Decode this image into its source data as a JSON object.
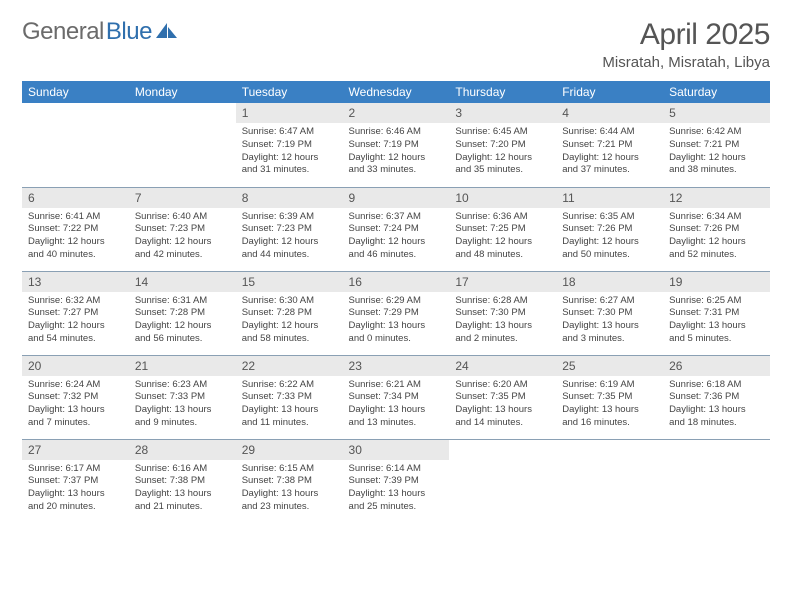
{
  "colors": {
    "header_bg": "#3a80c4",
    "header_fg": "#ffffff",
    "daynum_bg": "#e9e9e9",
    "text": "#444444",
    "title": "#555555",
    "logo_gray": "#6b6b6b",
    "logo_blue": "#2f6fad",
    "rule": "#8aa0b4"
  },
  "logo": {
    "part1": "General",
    "part2": "Blue"
  },
  "title": "April 2025",
  "subtitle": "Misratah, Misratah, Libya",
  "weekdays": [
    "Sunday",
    "Monday",
    "Tuesday",
    "Wednesday",
    "Thursday",
    "Friday",
    "Saturday"
  ],
  "weeks": [
    [
      null,
      null,
      {
        "n": "1",
        "sunrise": "6:47 AM",
        "sunset": "7:19 PM",
        "dl1": "Daylight: 12 hours",
        "dl2": "and 31 minutes."
      },
      {
        "n": "2",
        "sunrise": "6:46 AM",
        "sunset": "7:19 PM",
        "dl1": "Daylight: 12 hours",
        "dl2": "and 33 minutes."
      },
      {
        "n": "3",
        "sunrise": "6:45 AM",
        "sunset": "7:20 PM",
        "dl1": "Daylight: 12 hours",
        "dl2": "and 35 minutes."
      },
      {
        "n": "4",
        "sunrise": "6:44 AM",
        "sunset": "7:21 PM",
        "dl1": "Daylight: 12 hours",
        "dl2": "and 37 minutes."
      },
      {
        "n": "5",
        "sunrise": "6:42 AM",
        "sunset": "7:21 PM",
        "dl1": "Daylight: 12 hours",
        "dl2": "and 38 minutes."
      }
    ],
    [
      {
        "n": "6",
        "sunrise": "6:41 AM",
        "sunset": "7:22 PM",
        "dl1": "Daylight: 12 hours",
        "dl2": "and 40 minutes."
      },
      {
        "n": "7",
        "sunrise": "6:40 AM",
        "sunset": "7:23 PM",
        "dl1": "Daylight: 12 hours",
        "dl2": "and 42 minutes."
      },
      {
        "n": "8",
        "sunrise": "6:39 AM",
        "sunset": "7:23 PM",
        "dl1": "Daylight: 12 hours",
        "dl2": "and 44 minutes."
      },
      {
        "n": "9",
        "sunrise": "6:37 AM",
        "sunset": "7:24 PM",
        "dl1": "Daylight: 12 hours",
        "dl2": "and 46 minutes."
      },
      {
        "n": "10",
        "sunrise": "6:36 AM",
        "sunset": "7:25 PM",
        "dl1": "Daylight: 12 hours",
        "dl2": "and 48 minutes."
      },
      {
        "n": "11",
        "sunrise": "6:35 AM",
        "sunset": "7:26 PM",
        "dl1": "Daylight: 12 hours",
        "dl2": "and 50 minutes."
      },
      {
        "n": "12",
        "sunrise": "6:34 AM",
        "sunset": "7:26 PM",
        "dl1": "Daylight: 12 hours",
        "dl2": "and 52 minutes."
      }
    ],
    [
      {
        "n": "13",
        "sunrise": "6:32 AM",
        "sunset": "7:27 PM",
        "dl1": "Daylight: 12 hours",
        "dl2": "and 54 minutes."
      },
      {
        "n": "14",
        "sunrise": "6:31 AM",
        "sunset": "7:28 PM",
        "dl1": "Daylight: 12 hours",
        "dl2": "and 56 minutes."
      },
      {
        "n": "15",
        "sunrise": "6:30 AM",
        "sunset": "7:28 PM",
        "dl1": "Daylight: 12 hours",
        "dl2": "and 58 minutes."
      },
      {
        "n": "16",
        "sunrise": "6:29 AM",
        "sunset": "7:29 PM",
        "dl1": "Daylight: 13 hours",
        "dl2": "and 0 minutes."
      },
      {
        "n": "17",
        "sunrise": "6:28 AM",
        "sunset": "7:30 PM",
        "dl1": "Daylight: 13 hours",
        "dl2": "and 2 minutes."
      },
      {
        "n": "18",
        "sunrise": "6:27 AM",
        "sunset": "7:30 PM",
        "dl1": "Daylight: 13 hours",
        "dl2": "and 3 minutes."
      },
      {
        "n": "19",
        "sunrise": "6:25 AM",
        "sunset": "7:31 PM",
        "dl1": "Daylight: 13 hours",
        "dl2": "and 5 minutes."
      }
    ],
    [
      {
        "n": "20",
        "sunrise": "6:24 AM",
        "sunset": "7:32 PM",
        "dl1": "Daylight: 13 hours",
        "dl2": "and 7 minutes."
      },
      {
        "n": "21",
        "sunrise": "6:23 AM",
        "sunset": "7:33 PM",
        "dl1": "Daylight: 13 hours",
        "dl2": "and 9 minutes."
      },
      {
        "n": "22",
        "sunrise": "6:22 AM",
        "sunset": "7:33 PM",
        "dl1": "Daylight: 13 hours",
        "dl2": "and 11 minutes."
      },
      {
        "n": "23",
        "sunrise": "6:21 AM",
        "sunset": "7:34 PM",
        "dl1": "Daylight: 13 hours",
        "dl2": "and 13 minutes."
      },
      {
        "n": "24",
        "sunrise": "6:20 AM",
        "sunset": "7:35 PM",
        "dl1": "Daylight: 13 hours",
        "dl2": "and 14 minutes."
      },
      {
        "n": "25",
        "sunrise": "6:19 AM",
        "sunset": "7:35 PM",
        "dl1": "Daylight: 13 hours",
        "dl2": "and 16 minutes."
      },
      {
        "n": "26",
        "sunrise": "6:18 AM",
        "sunset": "7:36 PM",
        "dl1": "Daylight: 13 hours",
        "dl2": "and 18 minutes."
      }
    ],
    [
      {
        "n": "27",
        "sunrise": "6:17 AM",
        "sunset": "7:37 PM",
        "dl1": "Daylight: 13 hours",
        "dl2": "and 20 minutes."
      },
      {
        "n": "28",
        "sunrise": "6:16 AM",
        "sunset": "7:38 PM",
        "dl1": "Daylight: 13 hours",
        "dl2": "and 21 minutes."
      },
      {
        "n": "29",
        "sunrise": "6:15 AM",
        "sunset": "7:38 PM",
        "dl1": "Daylight: 13 hours",
        "dl2": "and 23 minutes."
      },
      {
        "n": "30",
        "sunrise": "6:14 AM",
        "sunset": "7:39 PM",
        "dl1": "Daylight: 13 hours",
        "dl2": "and 25 minutes."
      },
      null,
      null,
      null
    ]
  ],
  "labels": {
    "sunrise": "Sunrise: ",
    "sunset": "Sunset: "
  }
}
